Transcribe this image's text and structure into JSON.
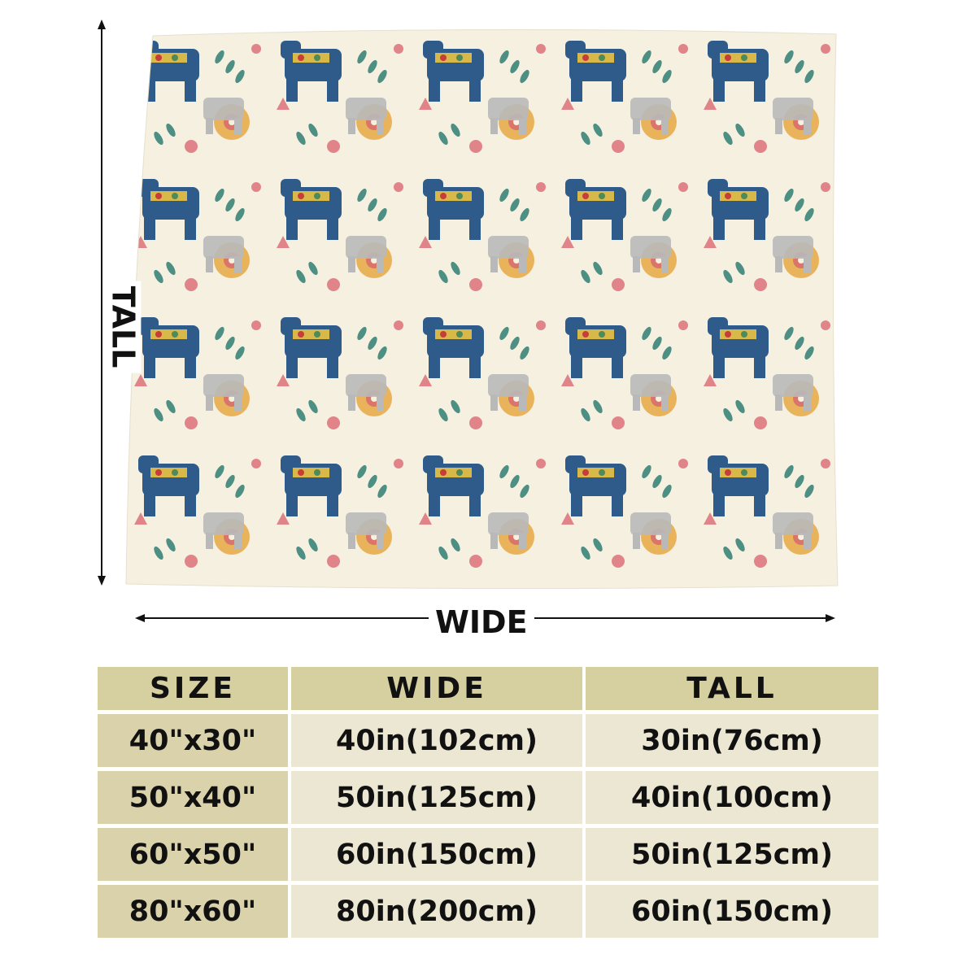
{
  "labels": {
    "tall": "TALL",
    "wide": "WIDE"
  },
  "table": {
    "header": [
      "SIZE",
      "WIDE",
      "TALL"
    ],
    "rows": [
      [
        "40\"x30\"",
        "40in(102cm)",
        "30in(76cm)"
      ],
      [
        "50\"x40\"",
        "50in(125cm)",
        "40in(100cm)"
      ],
      [
        "60\"x50\"",
        "60in(150cm)",
        "50in(125cm)"
      ],
      [
        "80\"x60\"",
        "80in(200cm)",
        "60in(150cm)"
      ]
    ]
  }
}
